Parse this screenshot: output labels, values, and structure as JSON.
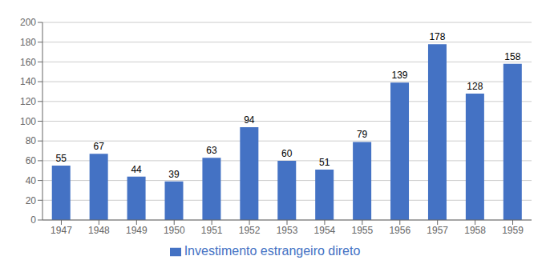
{
  "chart_data": {
    "type": "bar",
    "categories": [
      "1947",
      "1948",
      "1949",
      "1950",
      "1951",
      "1952",
      "1953",
      "1954",
      "1955",
      "1956",
      "1957",
      "1958",
      "1959"
    ],
    "series": [
      {
        "name": "Investimento estrangeiro direto",
        "color": "#4472C4",
        "values": [
          55,
          67,
          44,
          39,
          63,
          94,
          60,
          51,
          79,
          139,
          178,
          128,
          158
        ]
      }
    ],
    "ylim": [
      0,
      200
    ],
    "yticks": [
      0,
      20,
      40,
      60,
      80,
      100,
      120,
      140,
      160,
      180,
      200
    ],
    "grid": true,
    "legend": "bottom",
    "data_labels": true
  }
}
